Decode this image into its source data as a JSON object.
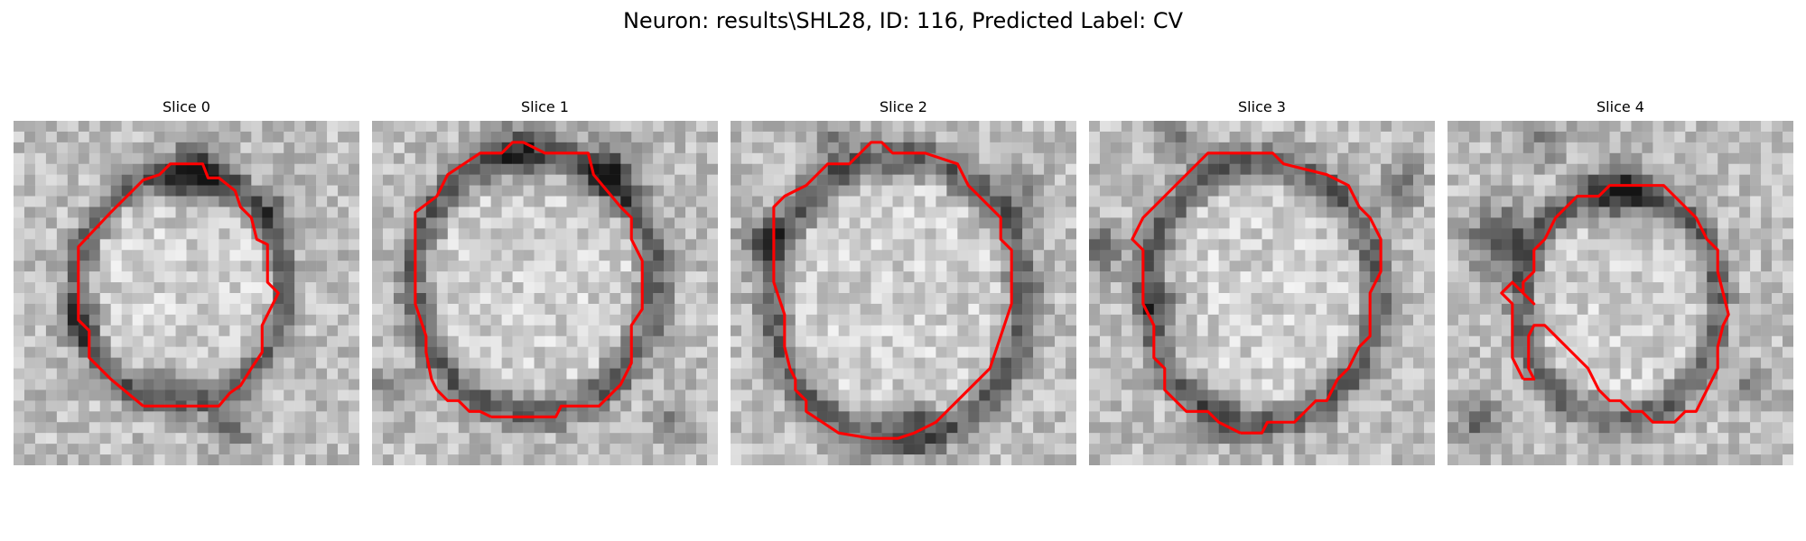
{
  "figure": {
    "title": "Neuron: results\\SHL28, ID: 116, Predicted Label: CV"
  },
  "panels": [
    {
      "title": "Slice 0"
    },
    {
      "title": "Slice 1"
    },
    {
      "title": "Slice 2"
    },
    {
      "title": "Slice 3"
    },
    {
      "title": "Slice 4"
    }
  ],
  "colors": {
    "contour": "#ff0000",
    "background": "#ffffff"
  }
}
